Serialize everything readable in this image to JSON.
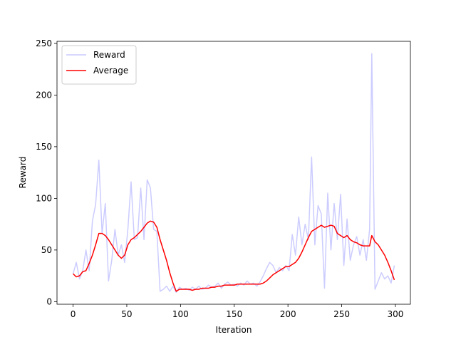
{
  "chart_data": {
    "type": "line",
    "xlabel": "Iteration",
    "ylabel": "Reward",
    "x": [
      0,
      3,
      6,
      9,
      12,
      15,
      18,
      21,
      24,
      27,
      30,
      33,
      36,
      39,
      42,
      45,
      48,
      51,
      54,
      57,
      60,
      63,
      66,
      69,
      72,
      75,
      78,
      81,
      84,
      87,
      90,
      93,
      96,
      99,
      102,
      105,
      108,
      111,
      114,
      117,
      120,
      123,
      126,
      129,
      132,
      135,
      138,
      141,
      144,
      147,
      150,
      153,
      156,
      159,
      162,
      165,
      168,
      171,
      174,
      177,
      180,
      183,
      186,
      189,
      192,
      195,
      198,
      201,
      204,
      207,
      210,
      213,
      216,
      219,
      222,
      225,
      228,
      231,
      234,
      237,
      240,
      243,
      246,
      249,
      252,
      255,
      258,
      261,
      264,
      267,
      270,
      273,
      276,
      278,
      281,
      284,
      287,
      290,
      293,
      296,
      299
    ],
    "series": [
      {
        "name": "Reward",
        "color": "#ccccff",
        "values": [
          27,
          38,
          22,
          30,
          50,
          30,
          78,
          94,
          137,
          66,
          95,
          20,
          40,
          70,
          45,
          55,
          38,
          70,
          116,
          60,
          62,
          110,
          60,
          118,
          110,
          70,
          68,
          10,
          12,
          15,
          10,
          15,
          9,
          14,
          12,
          13,
          11,
          14,
          12,
          15,
          12,
          13,
          16,
          14,
          15,
          18,
          13,
          17,
          19,
          16,
          17,
          15,
          18,
          16,
          20,
          17,
          18,
          15,
          19,
          25,
          32,
          38,
          35,
          28,
          33,
          30,
          35,
          30,
          65,
          45,
          82,
          55,
          75,
          60,
          140,
          55,
          93,
          85,
          13,
          105,
          50,
          95,
          60,
          104,
          35,
          80,
          40,
          55,
          63,
          45,
          60,
          40,
          70,
          240,
          12,
          20,
          28,
          22,
          25,
          18,
          35
        ]
      },
      {
        "name": "Average",
        "color": "#ff0000",
        "values": [
          27,
          24,
          25,
          29,
          30,
          37,
          45,
          55,
          66,
          66,
          64,
          60,
          55,
          50,
          45,
          42,
          45,
          55,
          60,
          62,
          65,
          68,
          72,
          76,
          78,
          77,
          72,
          60,
          50,
          40,
          28,
          18,
          10,
          12,
          12,
          12,
          12,
          11,
          12,
          12,
          13,
          13,
          13,
          14,
          14,
          15,
          15,
          16,
          16,
          16,
          16,
          17,
          17,
          17,
          17,
          17,
          17,
          17,
          17,
          18,
          20,
          23,
          26,
          28,
          30,
          32,
          34,
          34,
          36,
          38,
          42,
          48,
          55,
          62,
          68,
          70,
          72,
          74,
          72,
          73,
          74,
          73,
          66,
          64,
          62,
          64,
          60,
          58,
          57,
          55,
          54,
          54,
          54,
          64,
          58,
          55,
          50,
          45,
          38,
          30,
          21
        ]
      }
    ],
    "xlim": [
      -14.95,
      313.95
    ],
    "ylim": [
      -2.5,
      252
    ],
    "xticks": [
      0,
      50,
      100,
      150,
      200,
      250,
      300
    ],
    "yticks": [
      0,
      50,
      100,
      150,
      200,
      250
    ],
    "legend": "upper left"
  }
}
